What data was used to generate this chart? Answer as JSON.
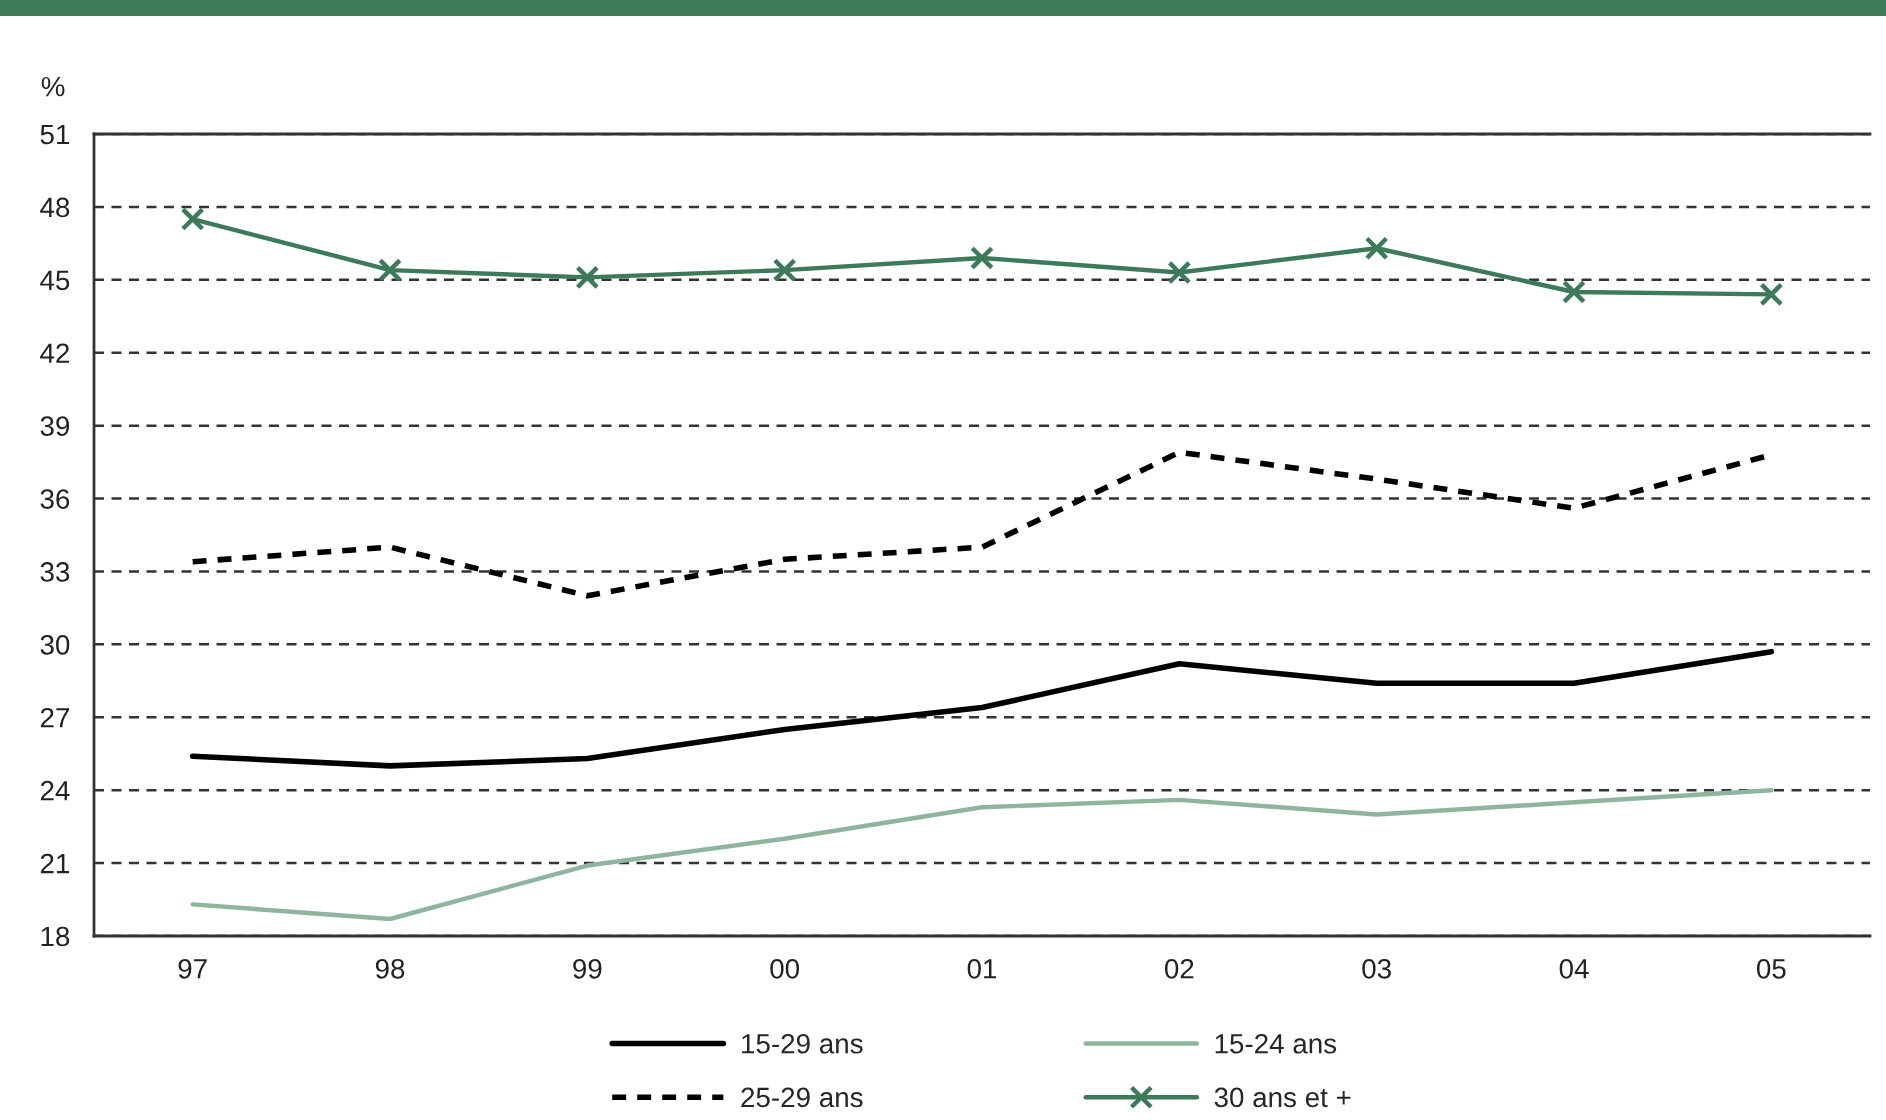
{
  "chart_data": {
    "type": "line",
    "ylabel": "%",
    "categories": [
      "97",
      "98",
      "99",
      "00",
      "01",
      "02",
      "03",
      "04",
      "05"
    ],
    "series": [
      {
        "name": "15-29 ans",
        "color": "#000000",
        "line_style": "solid",
        "marker": "none",
        "values": [
          25.4,
          25.0,
          25.3,
          26.5,
          27.4,
          29.2,
          28.4,
          28.4,
          29.7
        ]
      },
      {
        "name": "15-24 ans",
        "color": "#8fb5a0",
        "line_style": "solid",
        "marker": "none",
        "values": [
          19.3,
          18.7,
          20.9,
          22.0,
          23.3,
          23.6,
          23.0,
          23.5,
          24.0
        ]
      },
      {
        "name": "25-29 ans",
        "color": "#000000",
        "line_style": "dashed",
        "marker": "none",
        "values": [
          33.4,
          34.0,
          32.0,
          33.5,
          34.0,
          37.9,
          36.8,
          35.6,
          37.8
        ]
      },
      {
        "name": "30 ans et +",
        "color": "#3d7a5a",
        "line_style": "solid",
        "marker": "cross",
        "values": [
          47.5,
          45.4,
          45.1,
          45.4,
          45.9,
          45.3,
          46.3,
          44.5,
          44.4
        ]
      }
    ],
    "ylim": [
      18,
      51
    ],
    "yticks": [
      18,
      21,
      24,
      27,
      30,
      33,
      36,
      39,
      42,
      45,
      48,
      51
    ],
    "grid": "y",
    "legend": "bottom"
  }
}
